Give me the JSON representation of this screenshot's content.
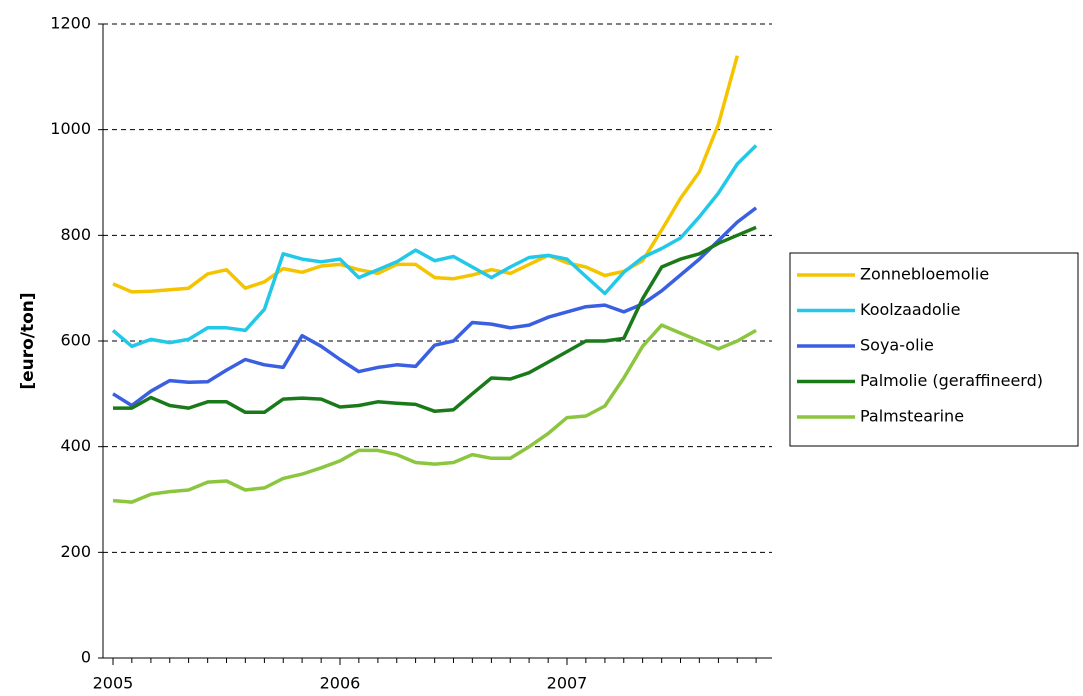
{
  "chart_data": {
    "type": "line",
    "y_label": "[euro/ton]",
    "x": [
      2005,
      2005.083,
      2005.167,
      2005.25,
      2005.333,
      2005.417,
      2005.5,
      2005.583,
      2005.667,
      2005.75,
      2005.833,
      2005.917,
      2006,
      2006.083,
      2006.167,
      2006.25,
      2006.333,
      2006.417,
      2006.5,
      2006.583,
      2006.667,
      2006.75,
      2006.833,
      2006.917,
      2007,
      2007.083,
      2007.167,
      2007.25,
      2007.333,
      2007.417,
      2007.5,
      2007.583,
      2007.667,
      2007.75,
      2007.833
    ],
    "xlim": [
      2004.956,
      2007.903
    ],
    "xticks": [
      2005,
      2006,
      2007
    ],
    "ylim": [
      0,
      1200
    ],
    "yticks": [
      0,
      200,
      400,
      600,
      800,
      1000,
      1200
    ],
    "grid": true,
    "legend": "right",
    "series": [
      {
        "name": "Zonnebloemolie",
        "color": "#f5c400",
        "values": [
          708,
          693,
          694,
          697,
          700,
          727,
          735,
          700,
          712,
          737,
          730,
          742,
          745,
          735,
          728,
          745,
          745,
          720,
          718,
          725,
          735,
          728,
          745,
          762,
          748,
          740,
          724,
          732,
          752,
          810,
          870,
          920,
          1010,
          1140,
          null
        ]
      },
      {
        "name": "Koolzaadolie",
        "color": "#22c8e8",
        "values": [
          620,
          590,
          603,
          597,
          603,
          625,
          625,
          620,
          660,
          765,
          755,
          750,
          755,
          720,
          735,
          750,
          772,
          752,
          760,
          740,
          720,
          740,
          758,
          762,
          755,
          722,
          690,
          730,
          758,
          775,
          795,
          835,
          880,
          935,
          970
        ]
      },
      {
        "name": "Soya-olie",
        "color": "#3a5fe0",
        "values": [
          500,
          478,
          505,
          525,
          522,
          523,
          545,
          565,
          555,
          550,
          610,
          590,
          565,
          542,
          550,
          555,
          552,
          592,
          600,
          635,
          632,
          625,
          630,
          645,
          655,
          665,
          668,
          655,
          670,
          695,
          725,
          755,
          790,
          825,
          852
        ]
      },
      {
        "name": "Palmolie (geraffineerd)",
        "color": "#1a7a1a",
        "values": [
          473,
          473,
          493,
          478,
          473,
          485,
          485,
          465,
          465,
          490,
          492,
          490,
          475,
          478,
          485,
          482,
          480,
          467,
          470,
          500,
          530,
          528,
          540,
          560,
          580,
          600,
          600,
          605,
          680,
          740,
          755,
          765,
          785,
          800,
          815
        ]
      },
      {
        "name": "Palmstearine",
        "color": "#8cc63f",
        "values": [
          298,
          295,
          310,
          315,
          318,
          333,
          335,
          318,
          322,
          340,
          348,
          360,
          373,
          393,
          393,
          385,
          370,
          367,
          370,
          385,
          378,
          378,
          400,
          425,
          455,
          458,
          477,
          530,
          590,
          630,
          615,
          600,
          585,
          600,
          620
        ]
      }
    ]
  }
}
